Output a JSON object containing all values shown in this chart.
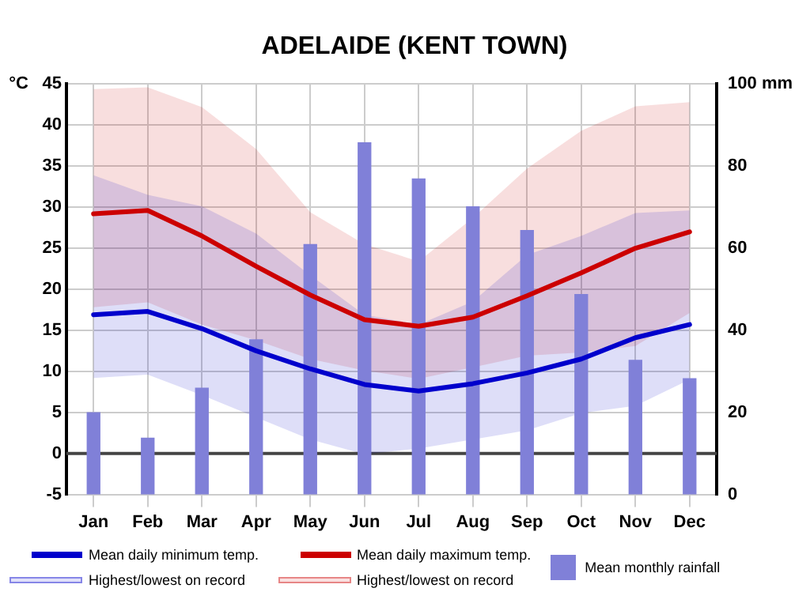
{
  "chart_data": {
    "type": "line",
    "title": "ADELAIDE (KENT TOWN)",
    "ylabel": "°C",
    "categories": [
      "Jan",
      "Feb",
      "Mar",
      "Apr",
      "May",
      "Jun",
      "Jul",
      "Aug",
      "Sep",
      "Oct",
      "Nov",
      "Dec"
    ],
    "series": [
      {
        "name": "Mean daily minimum temp.",
        "color": "#0000cc",
        "values": [
          16.9,
          17.3,
          15.2,
          12.5,
          10.3,
          8.4,
          7.6,
          8.5,
          9.8,
          11.5,
          14.1,
          15.7
        ],
        "lower": [
          9.2,
          9.6,
          7.1,
          4.4,
          1.7,
          -0.1,
          0.6,
          1.7,
          2.8,
          4.9,
          5.8,
          9.0
        ],
        "upper": [
          33.9,
          31.5,
          30.1,
          26.8,
          21.7,
          16.9,
          15.7,
          18.5,
          24.2,
          26.5,
          29.3,
          29.6
        ]
      },
      {
        "name": "Mean daily maximum temp.",
        "color": "#cc0000",
        "values": [
          29.2,
          29.6,
          26.5,
          22.8,
          19.3,
          16.3,
          15.5,
          16.6,
          19.2,
          22.0,
          25.0,
          27.0
        ],
        "lower": [
          17.8,
          18.4,
          15.7,
          13.8,
          11.5,
          10.1,
          9.1,
          10.5,
          11.9,
          12.3,
          13.1,
          17.1
        ],
        "upper": [
          44.4,
          44.6,
          42.2,
          37.1,
          29.4,
          25.5,
          23.4,
          28.7,
          34.7,
          39.3,
          42.3,
          42.8
        ]
      },
      {
        "name": "Mean monthly rainfall",
        "type": "bar",
        "axis": "y2",
        "color": "#8080d8",
        "values": [
          19.9,
          13.7,
          25.9,
          37.7,
          60.9,
          85.7,
          76.9,
          70.1,
          64.3,
          48.7,
          32.7,
          28.2
        ]
      }
    ],
    "ylim": [
      -5,
      45
    ],
    "yticks": [
      -5,
      0,
      5,
      10,
      15,
      20,
      25,
      30,
      35,
      40,
      45
    ],
    "y2lim": [
      0,
      100
    ],
    "y2ticks": [
      0,
      20,
      40,
      60,
      80,
      {
        "value": 100,
        "label": "100 mm"
      }
    ],
    "ref_lines": [
      {
        "axis": "y",
        "value": 0,
        "color": "#444444"
      }
    ],
    "annotations": [
      "Highest/lowest on record",
      "Highest/lowest on record"
    ],
    "grid": true,
    "legend": "bottom",
    "marker": "none",
    "line_style": "solid"
  }
}
